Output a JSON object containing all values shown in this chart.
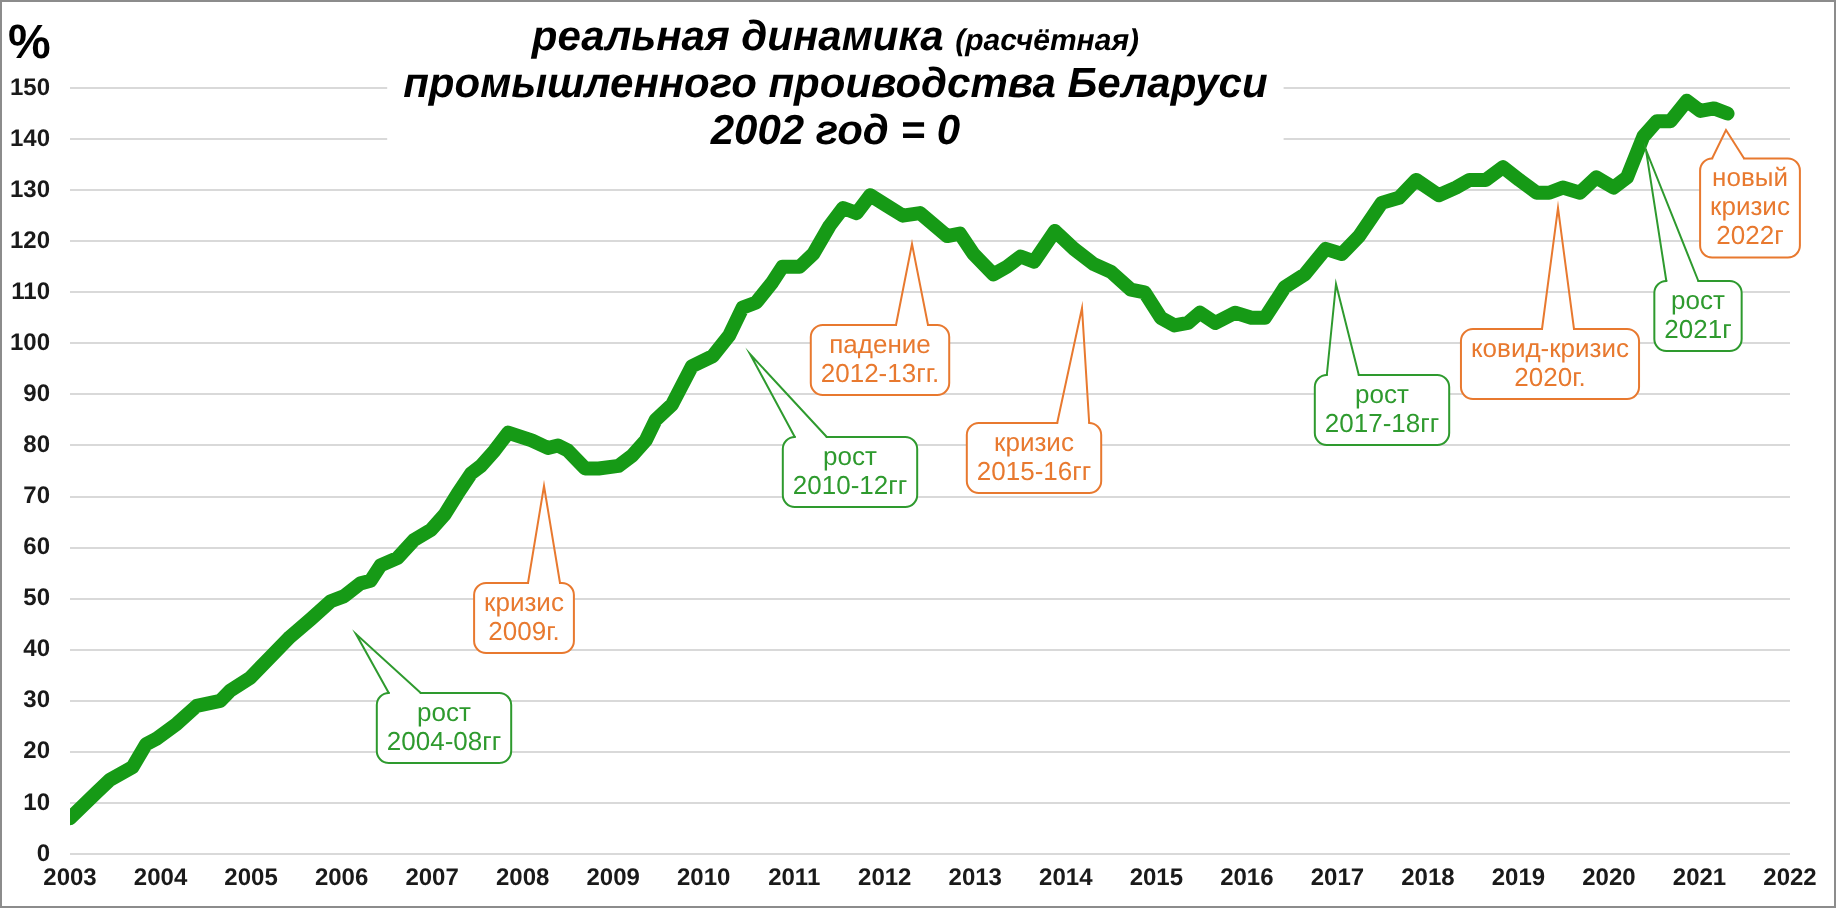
{
  "chart_data": {
    "type": "line",
    "title": "реальная динамика (расчётная)\nпромышленного проиводства Беларуси\n2002 год = 0",
    "ylabel": "%",
    "x": [
      2003.0,
      2003.29,
      2003.44,
      2003.69,
      2003.84,
      2003.95,
      2004.18,
      2004.4,
      2004.66,
      2004.77,
      2004.99,
      2005.21,
      2005.43,
      2005.66,
      2005.88,
      2006.03,
      2006.21,
      2006.32,
      2006.43,
      2006.62,
      2006.8,
      2006.99,
      2007.14,
      2007.28,
      2007.43,
      2007.54,
      2007.69,
      2007.84,
      2008.1,
      2008.28,
      2008.39,
      2008.5,
      2008.69,
      2008.84,
      2009.06,
      2009.21,
      2009.36,
      2009.47,
      2009.65,
      2009.87,
      2010.1,
      2010.28,
      2010.43,
      2010.58,
      2010.76,
      2010.87,
      2011.06,
      2011.21,
      2011.39,
      2011.54,
      2011.69,
      2011.84,
      2012.02,
      2012.2,
      2012.39,
      2012.69,
      2012.83,
      2012.98,
      2013.2,
      2013.35,
      2013.5,
      2013.65,
      2013.88,
      2014.09,
      2014.31,
      2014.5,
      2014.72,
      2014.87,
      2015.05,
      2015.2,
      2015.35,
      2015.48,
      2015.65,
      2015.87,
      2016.05,
      2016.2,
      2016.42,
      2016.64,
      2016.87,
      2017.05,
      2017.24,
      2017.49,
      2017.68,
      2017.87,
      2018.12,
      2018.31,
      2018.46,
      2018.64,
      2018.83,
      2019.01,
      2019.2,
      2019.34,
      2019.49,
      2019.68,
      2019.86,
      2020.05,
      2020.2,
      2020.38,
      2020.53,
      2020.68,
      2020.86,
      2021.01,
      2021.16,
      2021.31
    ],
    "values": [
      7,
      12,
      14.5,
      17,
      21.5,
      22.5,
      25.5,
      29,
      30,
      32,
      34.5,
      38.5,
      42.5,
      46,
      49.5,
      50.5,
      53,
      53.5,
      56.5,
      58,
      61.5,
      63.5,
      66.5,
      70.5,
      74.5,
      76,
      79,
      82.5,
      81,
      79.5,
      80,
      79,
      75.5,
      75.5,
      76,
      78,
      81,
      85,
      88,
      95.5,
      97.5,
      101.5,
      107,
      108,
      112,
      115,
      115,
      117.5,
      123,
      126.5,
      125.5,
      129,
      127,
      125,
      125.5,
      121,
      121.5,
      117.5,
      113.5,
      115,
      117,
      116,
      122,
      118.5,
      115.5,
      114,
      110.5,
      110,
      105,
      103.5,
      104,
      106,
      104,
      106,
      105,
      105,
      111,
      113.5,
      118.5,
      117.5,
      121,
      127.5,
      128.5,
      132,
      129,
      130.5,
      132,
      132,
      134.5,
      132,
      129.5,
      129.5,
      130.5,
      129.5,
      132.5,
      130.5,
      132.5,
      140.5,
      143.5,
      143.5,
      147.5,
      145.5,
      146,
      145
    ],
    "color": "#169a16",
    "xlim": [
      2003,
      2022
    ],
    "xticks": [
      2003,
      2004,
      2005,
      2006,
      2007,
      2008,
      2009,
      2010,
      2011,
      2012,
      2013,
      2014,
      2015,
      2016,
      2017,
      2018,
      2019,
      2020,
      2021,
      2022
    ],
    "ylim": [
      0,
      150
    ],
    "yticks": [
      0,
      10,
      20,
      30,
      40,
      50,
      60,
      70,
      80,
      90,
      100,
      110,
      120,
      130,
      140,
      150
    ],
    "grid": "y",
    "annotations": [
      "рост 2004-08гг",
      "кризис 2009г.",
      "рост 2010-12гг",
      "падение 2012-13гг.",
      "кризис 2015-16гг",
      "рост 2017-18гг",
      "ковид-кризис 2020г.",
      "рост 2021г",
      "новый кризис 2022г"
    ]
  }
}
